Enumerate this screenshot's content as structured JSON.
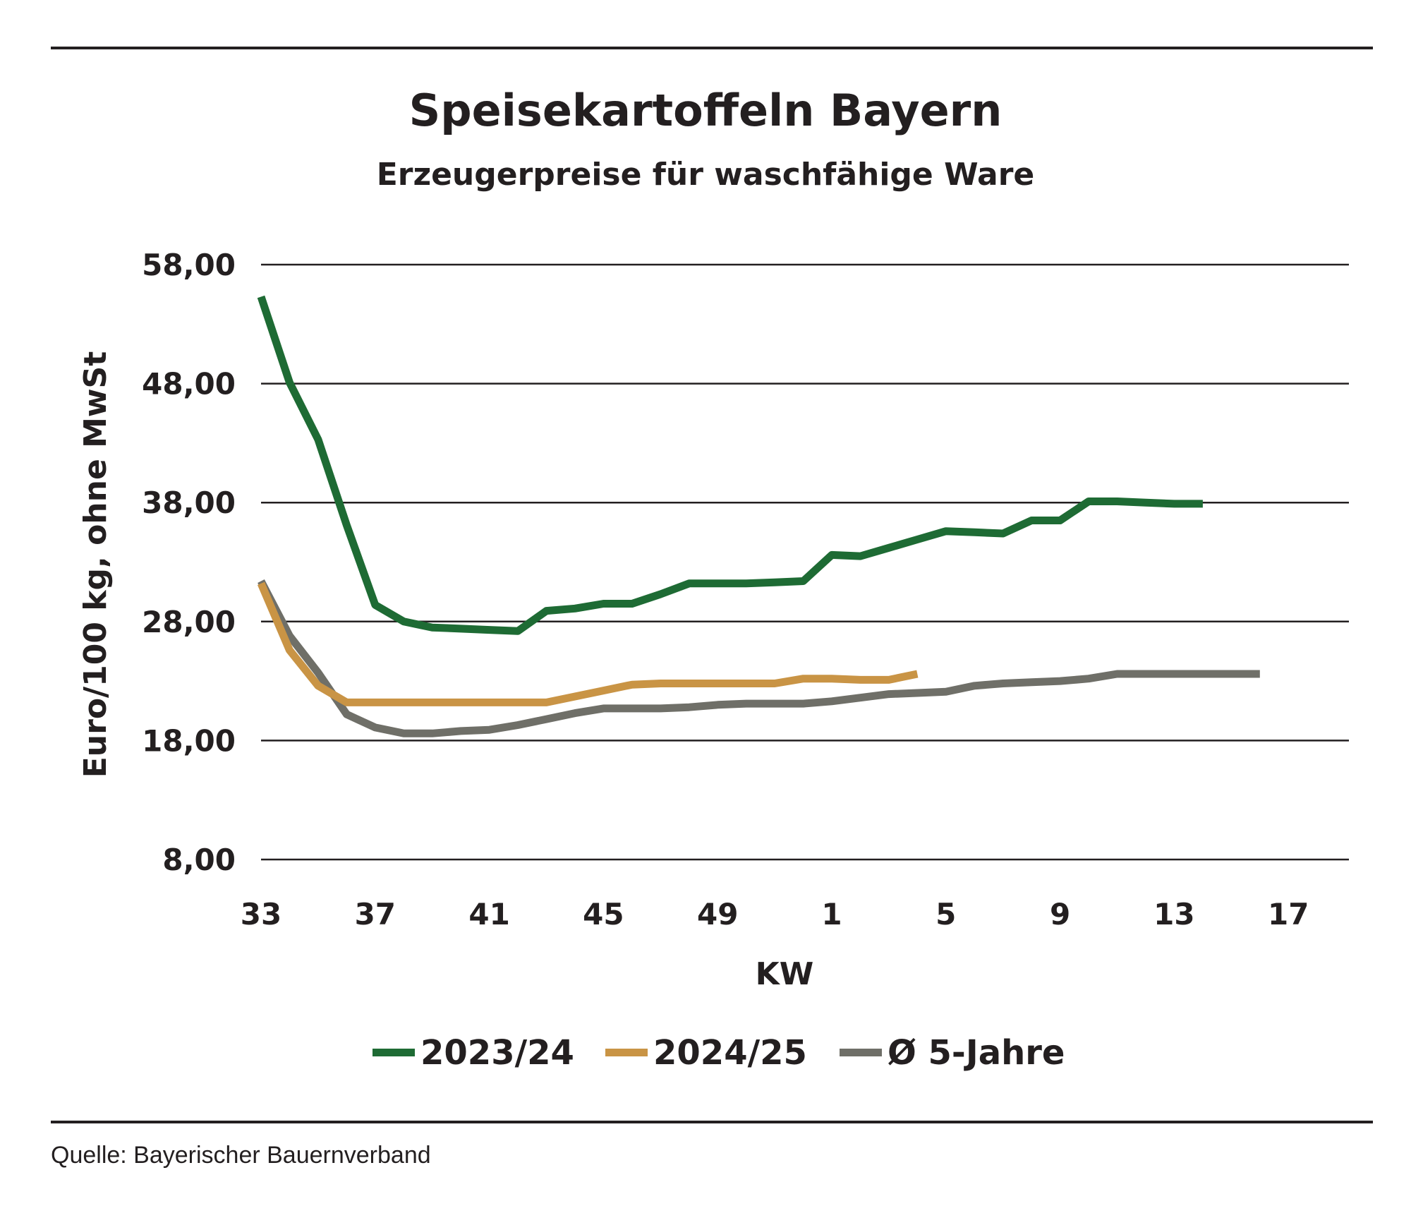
{
  "chart_data": {
    "type": "line",
    "title": "Speisekartoffeln Bayern",
    "subtitle": "Erzeugerpreise für waschfähige Ware",
    "xlabel": "KW",
    "ylabel": "Euro/100 kg, ohne MwSt",
    "x_tick_labels": [
      "33",
      "37",
      "41",
      "45",
      "49",
      "1",
      "5",
      "9",
      "13",
      "17"
    ],
    "y_tick_labels": [
      "58,00",
      "48,00",
      "38,00",
      "28,00",
      "18,00",
      "8,00"
    ],
    "y_ticks": [
      58,
      48,
      38,
      28,
      18,
      8
    ],
    "ylim": [
      8,
      58
    ],
    "grid": "horizontal",
    "legend_position": "bottom",
    "weeks": [
      "33",
      "34",
      "35",
      "36",
      "37",
      "38",
      "39",
      "40",
      "41",
      "42",
      "43",
      "44",
      "45",
      "46",
      "47",
      "48",
      "49",
      "50",
      "51",
      "52",
      "1",
      "2",
      "3",
      "4",
      "5",
      "6",
      "7",
      "8",
      "9",
      "10",
      "11",
      "12",
      "13",
      "14",
      "15",
      "16",
      "17",
      "18"
    ],
    "series": [
      {
        "name": "2023/24",
        "color": "#1e6b34",
        "values": [
          55.3,
          48.1,
          43.3,
          36.1,
          29.4,
          28.0,
          27.5,
          27.4,
          27.3,
          27.2,
          28.9,
          29.1,
          29.5,
          29.5,
          30.3,
          31.2,
          31.2,
          31.2,
          31.3,
          31.4,
          33.6,
          33.5,
          34.2,
          34.9,
          35.6,
          35.5,
          35.4,
          36.5,
          36.5,
          38.1,
          38.1,
          38.0,
          37.9,
          37.9
        ]
      },
      {
        "name": "2024/25",
        "color": "#c99445",
        "values": [
          31.2,
          25.6,
          22.6,
          21.2,
          21.2,
          21.2,
          21.2,
          21.2,
          21.2,
          21.2,
          21.2,
          21.7,
          22.2,
          22.7,
          22.8,
          22.8,
          22.8,
          22.8,
          22.8,
          23.2,
          23.2,
          23.1,
          23.1,
          23.6
        ]
      },
      {
        "name": "Ø 5-Jahre",
        "color": "#6f6f68",
        "values": [
          31.4,
          26.8,
          23.7,
          20.2,
          19.1,
          18.6,
          18.6,
          18.8,
          18.9,
          19.3,
          19.8,
          20.3,
          20.7,
          20.7,
          20.7,
          20.8,
          21.0,
          21.1,
          21.1,
          21.1,
          21.3,
          21.6,
          21.9,
          22.0,
          22.1,
          22.6,
          22.8,
          22.9,
          23.0,
          23.2,
          23.6,
          23.6,
          23.6,
          23.6,
          23.6,
          23.6
        ]
      }
    ]
  },
  "source": "Quelle: Bayerischer Bauernverband"
}
